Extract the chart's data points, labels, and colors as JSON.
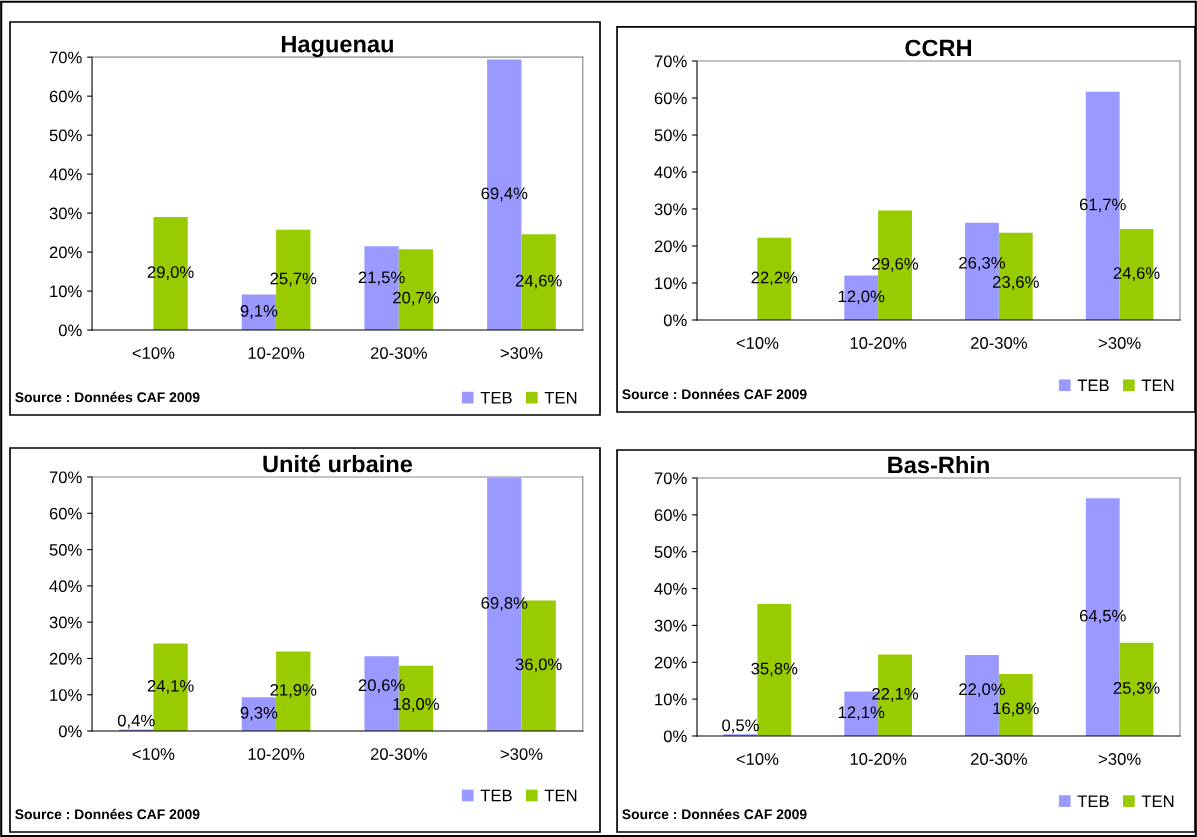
{
  "chart_data": [
    {
      "type": "bar",
      "title": "Haguenau",
      "categories": [
        "<10%",
        "10-20%",
        "20-30%",
        ">30%"
      ],
      "series": [
        {
          "name": "TEB",
          "color": "#9999ff",
          "values": [
            null,
            9.1,
            21.5,
            69.4
          ],
          "value_labels": [
            null,
            "9,1%",
            "21,5%",
            "69,4%"
          ]
        },
        {
          "name": "TEN",
          "color": "#99cc00",
          "values": [
            29.0,
            25.7,
            20.7,
            24.6
          ],
          "value_labels": [
            "29,0%",
            "25,7%",
            "20,7%",
            "24,6%"
          ]
        }
      ],
      "ylim": [
        0,
        70
      ],
      "yticks": [
        {
          "value": 0,
          "label": "0%"
        },
        {
          "value": 10,
          "label": "10%"
        },
        {
          "value": 20,
          "label": "20%"
        },
        {
          "value": 30,
          "label": "30%"
        },
        {
          "value": 40,
          "label": "40%"
        },
        {
          "value": 50,
          "label": "50%"
        },
        {
          "value": 60,
          "label": "60%"
        },
        {
          "value": 70,
          "label": "70%"
        }
      ],
      "grid": false,
      "legend": "bottom right",
      "annotations": [
        "Source : Données CAF 2009"
      ]
    },
    {
      "type": "bar",
      "title": "CCRH",
      "categories": [
        "<10%",
        "10-20%",
        "20-30%",
        ">30%"
      ],
      "series": [
        {
          "name": "TEB",
          "color": "#9999ff",
          "values": [
            null,
            12.0,
            26.3,
            61.7
          ],
          "value_labels": [
            null,
            "12,0%",
            "26,3%",
            "61,7%"
          ]
        },
        {
          "name": "TEN",
          "color": "#99cc00",
          "values": [
            22.2,
            29.6,
            23.6,
            24.6
          ],
          "value_labels": [
            "22,2%",
            "29,6%",
            "23,6%",
            "24,6%"
          ]
        }
      ],
      "ylim": [
        0,
        70
      ],
      "yticks": [
        {
          "value": 0,
          "label": "0%"
        },
        {
          "value": 10,
          "label": "10%"
        },
        {
          "value": 20,
          "label": "20%"
        },
        {
          "value": 30,
          "label": "30%"
        },
        {
          "value": 40,
          "label": "40%"
        },
        {
          "value": 50,
          "label": "50%"
        },
        {
          "value": 60,
          "label": "60%"
        },
        {
          "value": 70,
          "label": "70%"
        }
      ],
      "grid": false,
      "legend": "bottom right",
      "annotations": [
        "Source : Données CAF 2009"
      ]
    },
    {
      "type": "bar",
      "title": "Unité urbaine",
      "categories": [
        "<10%",
        "10-20%",
        "20-30%",
        ">30%"
      ],
      "series": [
        {
          "name": "TEB",
          "color": "#9999ff",
          "values": [
            0.4,
            9.3,
            20.6,
            69.8
          ],
          "value_labels": [
            "0,4%",
            "9,3%",
            "20,6%",
            "69,8%"
          ]
        },
        {
          "name": "TEN",
          "color": "#99cc00",
          "values": [
            24.1,
            21.9,
            18.0,
            36.0
          ],
          "value_labels": [
            "24,1%",
            "21,9%",
            "18,0%",
            "36,0%"
          ]
        }
      ],
      "ylim": [
        0,
        70
      ],
      "yticks": [
        {
          "value": 0,
          "label": "0%"
        },
        {
          "value": 10,
          "label": "10%"
        },
        {
          "value": 20,
          "label": "20%"
        },
        {
          "value": 30,
          "label": "30%"
        },
        {
          "value": 40,
          "label": "40%"
        },
        {
          "value": 50,
          "label": "50%"
        },
        {
          "value": 60,
          "label": "60%"
        },
        {
          "value": 70,
          "label": "70%"
        }
      ],
      "grid": false,
      "legend": "bottom right",
      "annotations": [
        "Source : Données CAF 2009"
      ]
    },
    {
      "type": "bar",
      "title": "Bas-Rhin",
      "categories": [
        "<10%",
        "10-20%",
        "20-30%",
        ">30%"
      ],
      "series": [
        {
          "name": "TEB",
          "color": "#9999ff",
          "values": [
            0.5,
            12.1,
            22.0,
            64.5
          ],
          "value_labels": [
            "0,5%",
            "12,1%",
            "22,0%",
            "64,5%"
          ]
        },
        {
          "name": "TEN",
          "color": "#99cc00",
          "values": [
            35.8,
            22.1,
            16.8,
            25.3
          ],
          "value_labels": [
            "35,8%",
            "22,1%",
            "16,8%",
            "25,3%"
          ]
        }
      ],
      "ylim": [
        0,
        70
      ],
      "yticks": [
        {
          "value": 0,
          "label": "0%"
        },
        {
          "value": 10,
          "label": "10%"
        },
        {
          "value": 20,
          "label": "20%"
        },
        {
          "value": 30,
          "label": "30%"
        },
        {
          "value": 40,
          "label": "40%"
        },
        {
          "value": 50,
          "label": "50%"
        },
        {
          "value": 60,
          "label": "60%"
        },
        {
          "value": 70,
          "label": "70%"
        }
      ],
      "grid": false,
      "legend": "bottom right",
      "annotations": [
        "Source : Données CAF 2009"
      ]
    }
  ]
}
